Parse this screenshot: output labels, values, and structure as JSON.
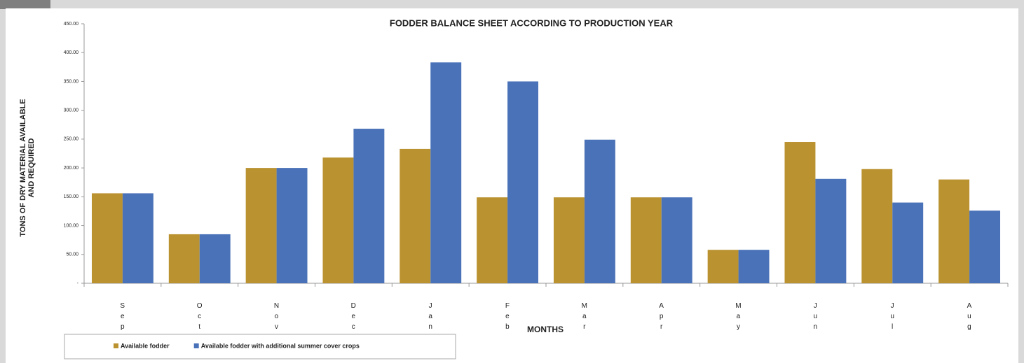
{
  "chart_data": {
    "type": "bar",
    "title": "FODDER BALANCE SHEET ACCORDING TO PRODUCTION YEAR",
    "ylabel": [
      "TONS OF DRY MATERIAL AVAILABLE",
      "AND REQUIRED"
    ],
    "xlabel": "MONTHS",
    "categories": [
      "Sep",
      "Oct",
      "Nov",
      "Dec",
      "Jan",
      "Feb",
      "Mar",
      "Apr",
      "May",
      "Jun",
      "Jul",
      "Aug"
    ],
    "series": [
      {
        "name": "Available fodder",
        "color": "#bb9230",
        "values": [
          156,
          85,
          200,
          218,
          233,
          149,
          149,
          149,
          58,
          245,
          198,
          180
        ]
      },
      {
        "name": "Available fodder with additional summer cover crops",
        "color": "#4a72b8",
        "values": [
          156,
          85,
          200,
          268,
          383,
          350,
          249,
          149,
          58,
          181,
          140,
          126
        ]
      }
    ],
    "ylim": [
      0,
      450
    ],
    "yticks": [
      {
        "value": 0,
        "label": "-"
      },
      {
        "value": 50,
        "label": "50.00"
      },
      {
        "value": 100,
        "label": "100.00"
      },
      {
        "value": 150,
        "label": "150.00"
      },
      {
        "value": 200,
        "label": "200.00"
      },
      {
        "value": 250,
        "label": "250.00"
      },
      {
        "value": 300,
        "label": "300.00"
      },
      {
        "value": 350,
        "label": "350.00"
      },
      {
        "value": 400,
        "label": "400.00"
      },
      {
        "value": 450,
        "label": "450.00"
      }
    ],
    "grid": false,
    "legend": "bottom-left"
  }
}
